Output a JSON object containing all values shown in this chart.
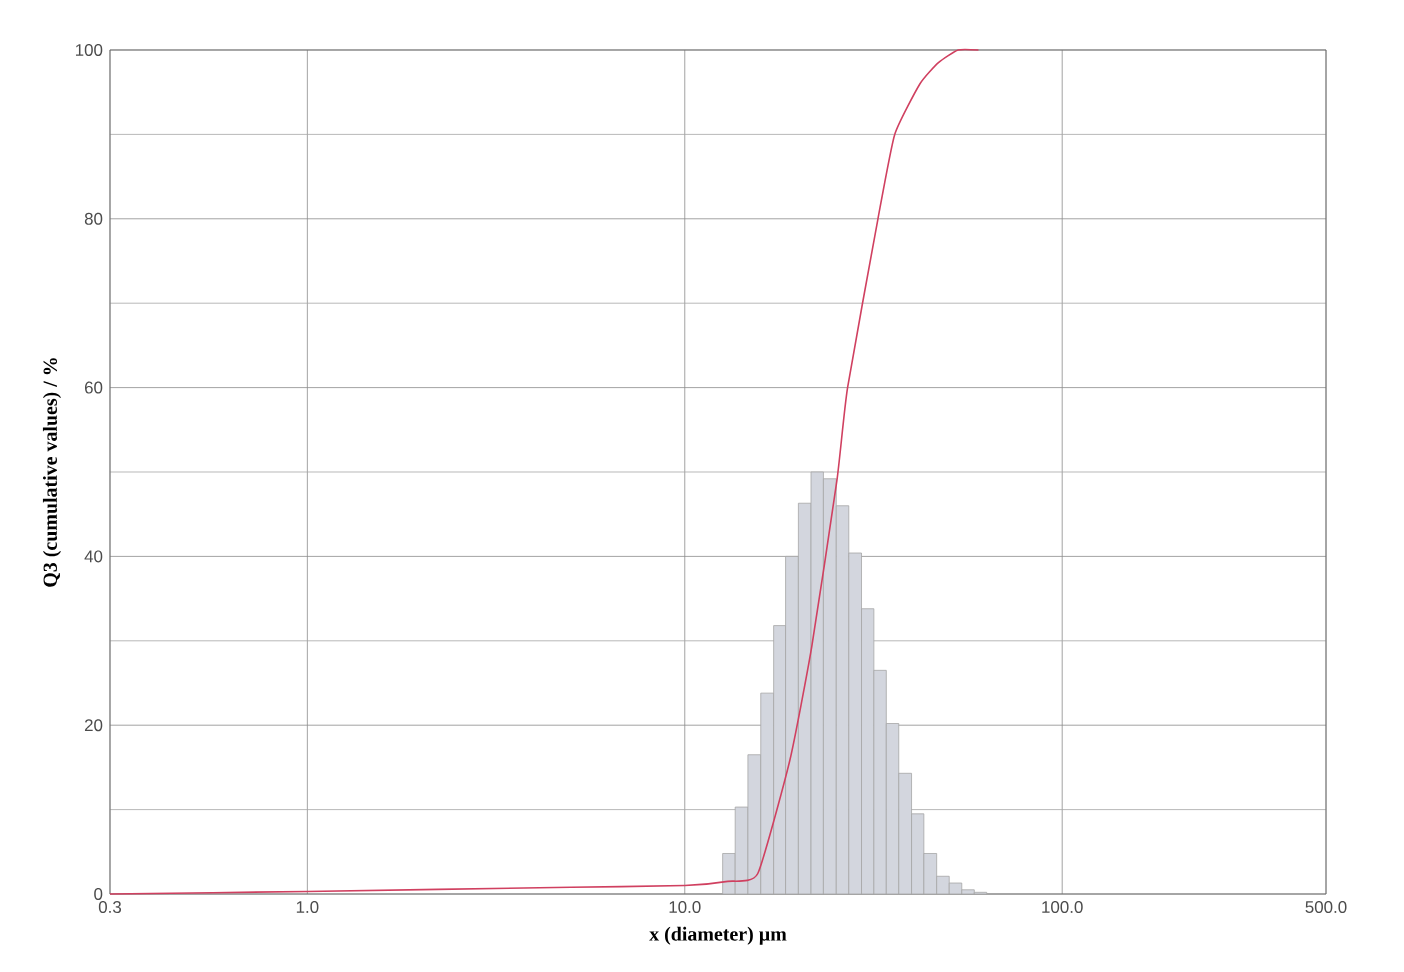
{
  "chart_data": {
    "type": "histogram",
    "xlabel": "x (diameter) µm",
    "ylabel": "Q3 (cumulative values) / %",
    "log": "x",
    "xlim": [
      0.3,
      500
    ],
    "ylim": [
      0,
      100
    ],
    "xticks": [
      0.3,
      {
        "value": 1,
        "label": "1.0"
      },
      {
        "value": 10,
        "label": "10.0"
      },
      {
        "value": 100,
        "label": "100.0"
      },
      {
        "value": 500,
        "label": "500.0"
      }
    ],
    "yticks": [
      0,
      20,
      40,
      60,
      80,
      100
    ],
    "grid": true,
    "color": "#d3d6de",
    "bins": [
      12.6,
      13.6,
      14.7,
      15.9,
      17.2,
      18.5,
      20.0,
      21.6,
      23.3,
      25.2,
      27.2,
      29.4,
      31.7,
      34.2,
      36.9,
      39.9,
      43.0,
      46.5,
      50.2,
      54.2,
      58.5,
      63.1
    ],
    "values": [
      4.8,
      10.3,
      16.5,
      23.8,
      31.8,
      40.0,
      46.3,
      50.0,
      49.2,
      46.0,
      40.4,
      33.8,
      26.5,
      20.2,
      14.3,
      9.5,
      4.8,
      2.1,
      1.3,
      0.5,
      0.2
    ],
    "series": [
      {
        "type": "line",
        "color": "#d04060",
        "x": [
          0.3,
          1,
          5,
          10,
          13,
          15.6,
          19,
          21.7,
          25.3,
          27,
          32.5,
          36,
          42,
          47,
          53,
          60
        ],
        "values": [
          0,
          0.3,
          0.8,
          1,
          1.5,
          2.4,
          15.9,
          29.3,
          49,
          60,
          80,
          90,
          96,
          98.5,
          100,
          100
        ]
      }
    ]
  }
}
